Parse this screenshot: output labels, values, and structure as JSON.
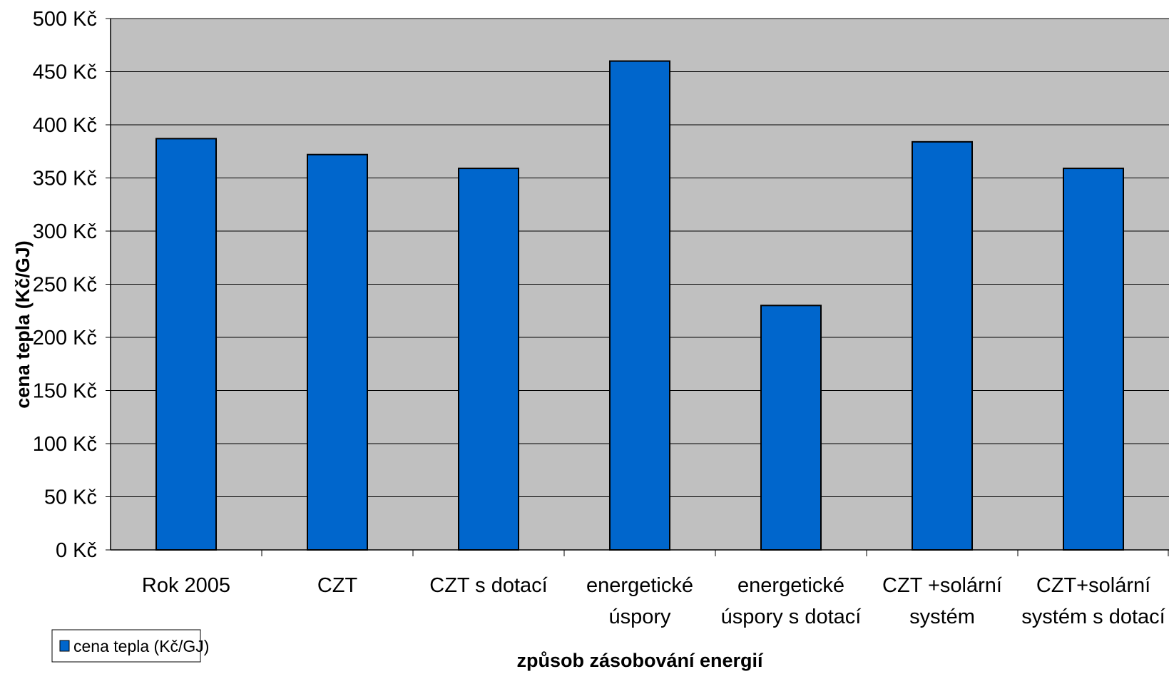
{
  "chart_data": {
    "type": "bar",
    "categories": [
      [
        "Rok 2005"
      ],
      [
        "CZT"
      ],
      [
        "CZT s dotací"
      ],
      [
        "energetické",
        "úspory"
      ],
      [
        "energetické",
        "úspory s dotací"
      ],
      [
        "CZT +solární",
        "systém"
      ],
      [
        "CZT+solární",
        "systém s dotací"
      ]
    ],
    "series": [
      {
        "name": "cena tepla (Kč/GJ)",
        "values": [
          387,
          372,
          359,
          460,
          230,
          384,
          359
        ],
        "color": "#0066cc"
      }
    ],
    "xlabel": "způsob zásobování energií",
    "ylabel": "cena tepla (Kč/GJ)",
    "ylim": [
      0,
      500
    ],
    "yticks": [
      {
        "value": 0,
        "label": "0 Kč"
      },
      {
        "value": 50,
        "label": "50 Kč"
      },
      {
        "value": 100,
        "label": "100 Kč"
      },
      {
        "value": 150,
        "label": "150 Kč"
      },
      {
        "value": 200,
        "label": "200 Kč"
      },
      {
        "value": 250,
        "label": "250 Kč"
      },
      {
        "value": 300,
        "label": "300 Kč"
      },
      {
        "value": 350,
        "label": "350 Kč"
      },
      {
        "value": 400,
        "label": "400 Kč"
      },
      {
        "value": 450,
        "label": "450 Kč"
      },
      {
        "value": 500,
        "label": "500 Kč"
      }
    ],
    "grid": true,
    "plot_background": "#c0c0c0",
    "legend_position": "bottom-left"
  }
}
